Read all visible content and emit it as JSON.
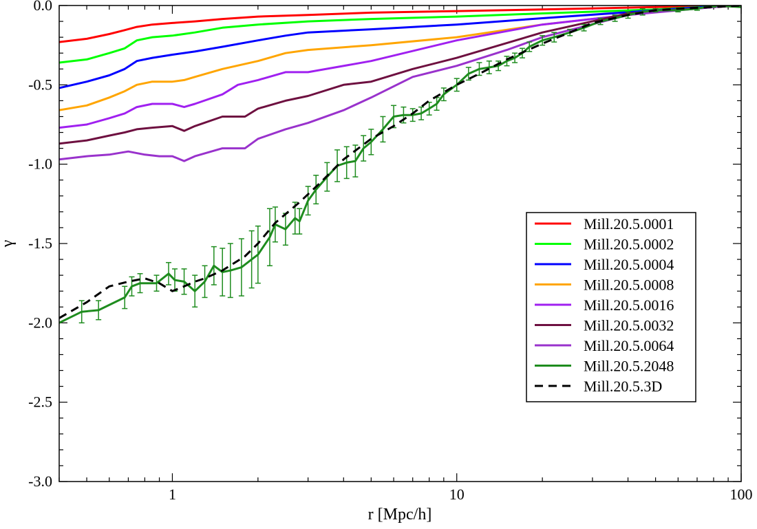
{
  "chart_data": {
    "type": "line",
    "title": "",
    "xlabel": "r [Mpc/h]",
    "ylabel": "γ",
    "xscale": "log",
    "xlim": [
      0.4,
      100
    ],
    "ylim": [
      -3.0,
      0.0
    ],
    "xticks": [
      {
        "value": 1,
        "label": "1"
      },
      {
        "value": 10,
        "label": "10"
      },
      {
        "value": 100,
        "label": "100"
      }
    ],
    "yticks": [
      {
        "value": 0.0,
        "label": "0.0"
      },
      {
        "value": -0.5,
        "label": "-0.5"
      },
      {
        "value": -1.0,
        "label": "-1.0"
      },
      {
        "value": -1.5,
        "label": "-1.5"
      },
      {
        "value": -2.0,
        "label": "-2.0"
      },
      {
        "value": -2.5,
        "label": "-2.5"
      },
      {
        "value": -3.0,
        "label": "-3.0"
      }
    ],
    "legend_position": "center-right",
    "series": [
      {
        "name": "Mill.20.5.0001",
        "color": "#ff0000",
        "style": "solid",
        "x": [
          0.4,
          0.5,
          0.6,
          0.68,
          0.75,
          0.85,
          1.0,
          1.2,
          1.5,
          2.0,
          3.0,
          5.0,
          10,
          20,
          50,
          80,
          100
        ],
        "y": [
          -0.23,
          -0.21,
          -0.18,
          -0.155,
          -0.135,
          -0.12,
          -0.11,
          -0.1,
          -0.085,
          -0.07,
          -0.06,
          -0.045,
          -0.035,
          -0.025,
          -0.01,
          -0.003,
          0.0
        ]
      },
      {
        "name": "Mill.20.5.0002",
        "color": "#00ff00",
        "style": "solid",
        "x": [
          0.4,
          0.5,
          0.6,
          0.68,
          0.75,
          0.85,
          1.0,
          1.2,
          1.5,
          2.0,
          3.0,
          5.0,
          10,
          20,
          50,
          80,
          100
        ],
        "y": [
          -0.36,
          -0.34,
          -0.3,
          -0.27,
          -0.22,
          -0.2,
          -0.19,
          -0.17,
          -0.14,
          -0.12,
          -0.1,
          -0.085,
          -0.07,
          -0.05,
          -0.025,
          -0.005,
          0.0
        ]
      },
      {
        "name": "Mill.20.5.0004",
        "color": "#0000ff",
        "style": "solid",
        "x": [
          0.4,
          0.5,
          0.6,
          0.68,
          0.75,
          0.85,
          1.0,
          1.2,
          1.5,
          2.0,
          2.5,
          3.0,
          5.0,
          10,
          20,
          50,
          80,
          100
        ],
        "y": [
          -0.52,
          -0.48,
          -0.44,
          -0.4,
          -0.35,
          -0.33,
          -0.31,
          -0.29,
          -0.26,
          -0.22,
          -0.19,
          -0.17,
          -0.15,
          -0.12,
          -0.08,
          -0.03,
          -0.005,
          0.0
        ]
      },
      {
        "name": "Mill.20.5.0008",
        "color": "#ffa500",
        "style": "solid",
        "x": [
          0.4,
          0.5,
          0.6,
          0.68,
          0.75,
          0.85,
          1.0,
          1.1,
          1.2,
          1.5,
          2.0,
          2.5,
          3.0,
          5.0,
          10,
          20,
          50,
          80,
          100
        ],
        "y": [
          -0.66,
          -0.63,
          -0.58,
          -0.54,
          -0.5,
          -0.48,
          -0.48,
          -0.47,
          -0.45,
          -0.4,
          -0.35,
          -0.3,
          -0.28,
          -0.25,
          -0.2,
          -0.12,
          -0.04,
          -0.01,
          0.0
        ]
      },
      {
        "name": "Mill.20.5.0016",
        "color": "#a020f0",
        "style": "solid",
        "x": [
          0.4,
          0.5,
          0.6,
          0.68,
          0.75,
          0.85,
          1.0,
          1.1,
          1.2,
          1.5,
          1.7,
          2.0,
          2.5,
          3.0,
          5.0,
          10,
          20,
          50,
          80,
          100
        ],
        "y": [
          -0.77,
          -0.75,
          -0.71,
          -0.68,
          -0.64,
          -0.62,
          -0.62,
          -0.64,
          -0.62,
          -0.56,
          -0.5,
          -0.47,
          -0.42,
          -0.42,
          -0.35,
          -0.22,
          -0.12,
          -0.04,
          -0.01,
          0.0
        ]
      },
      {
        "name": "Mill.20.5.0032",
        "color": "#6e1040",
        "style": "solid",
        "x": [
          0.4,
          0.5,
          0.6,
          0.68,
          0.75,
          0.85,
          1.0,
          1.1,
          1.2,
          1.5,
          1.8,
          2.0,
          2.5,
          3.0,
          4.0,
          5.0,
          7.0,
          10,
          20,
          40,
          80,
          100
        ],
        "y": [
          -0.87,
          -0.85,
          -0.82,
          -0.8,
          -0.78,
          -0.77,
          -0.76,
          -0.79,
          -0.76,
          -0.7,
          -0.7,
          -0.65,
          -0.6,
          -0.57,
          -0.5,
          -0.48,
          -0.4,
          -0.33,
          -0.17,
          -0.05,
          -0.01,
          0.0
        ]
      },
      {
        "name": "Mill.20.5.0064",
        "color": "#9932cc",
        "style": "solid",
        "x": [
          0.4,
          0.5,
          0.6,
          0.7,
          0.8,
          0.9,
          1.0,
          1.1,
          1.2,
          1.5,
          1.8,
          2.0,
          2.5,
          3.0,
          4.0,
          5.0,
          7.0,
          10,
          15,
          20,
          40,
          80,
          100
        ],
        "y": [
          -0.97,
          -0.95,
          -0.94,
          -0.92,
          -0.94,
          -0.95,
          -0.95,
          -0.98,
          -0.95,
          -0.9,
          -0.9,
          -0.84,
          -0.78,
          -0.74,
          -0.66,
          -0.58,
          -0.45,
          -0.38,
          -0.28,
          -0.2,
          -0.06,
          -0.01,
          0.0
        ]
      },
      {
        "name": "Mill.20.5.2048",
        "color": "#1e8c1e",
        "style": "solid",
        "errorbars": true,
        "x": [
          0.4,
          0.48,
          0.55,
          0.68,
          0.72,
          0.77,
          0.88,
          0.97,
          1.02,
          1.1,
          1.2,
          1.3,
          1.4,
          1.5,
          1.6,
          1.75,
          1.9,
          2.0,
          2.2,
          2.3,
          2.5,
          2.7,
          2.8,
          3.0,
          3.2,
          3.5,
          3.8,
          4.1,
          4.4,
          4.7,
          5.0,
          5.5,
          6.0,
          6.5,
          7.0,
          7.5,
          8.0,
          8.5,
          9.0,
          10,
          11,
          12,
          13,
          14,
          15,
          16,
          17,
          18,
          20,
          22,
          25,
          28,
          32,
          36,
          40,
          45,
          50,
          60,
          70,
          80,
          100
        ],
        "y": [
          -2.0,
          -1.93,
          -1.92,
          -1.84,
          -1.77,
          -1.75,
          -1.75,
          -1.69,
          -1.73,
          -1.74,
          -1.8,
          -1.74,
          -1.64,
          -1.68,
          -1.67,
          -1.65,
          -1.6,
          -1.57,
          -1.46,
          -1.38,
          -1.41,
          -1.34,
          -1.36,
          -1.23,
          -1.16,
          -1.08,
          -1.01,
          -0.99,
          -0.98,
          -0.9,
          -0.86,
          -0.78,
          -0.7,
          -0.69,
          -0.69,
          -0.68,
          -0.65,
          -0.62,
          -0.56,
          -0.5,
          -0.43,
          -0.4,
          -0.39,
          -0.38,
          -0.35,
          -0.33,
          -0.3,
          -0.26,
          -0.22,
          -0.2,
          -0.17,
          -0.14,
          -0.1,
          -0.08,
          -0.06,
          -0.04,
          -0.03,
          -0.03,
          -0.02,
          0.0,
          -0.01
        ],
        "err": [
          0.0,
          0.07,
          0.06,
          0.07,
          0.06,
          0.06,
          0.05,
          0.07,
          0.07,
          0.08,
          0.1,
          0.1,
          0.12,
          0.15,
          0.17,
          0.18,
          0.18,
          0.18,
          0.18,
          0.11,
          0.1,
          0.1,
          0.08,
          0.09,
          0.09,
          0.09,
          0.1,
          0.1,
          0.1,
          0.08,
          0.08,
          0.08,
          0.07,
          0.05,
          0.04,
          0.04,
          0.04,
          0.04,
          0.04,
          0.04,
          0.04,
          0.04,
          0.04,
          0.03,
          0.03,
          0.03,
          0.03,
          0.03,
          0.03,
          0.03,
          0.02,
          0.02,
          0.02,
          0.02,
          0.02,
          0.02,
          0.01,
          0.01,
          0.01,
          0.01,
          0.0
        ]
      },
      {
        "name": "Mill.20.5.3D",
        "color": "#000000",
        "style": "dashed",
        "x": [
          0.4,
          0.5,
          0.6,
          0.7,
          0.8,
          0.9,
          1.0,
          1.1,
          1.2,
          1.3,
          1.5,
          1.8,
          2.0,
          2.3,
          2.8,
          3.3,
          4.0,
          5.0,
          6.0,
          7.0,
          8.0,
          10,
          12,
          15,
          20,
          25,
          30,
          40,
          50,
          60,
          80,
          100
        ],
        "y": [
          -1.97,
          -1.87,
          -1.77,
          -1.74,
          -1.72,
          -1.75,
          -1.8,
          -1.77,
          -1.74,
          -1.72,
          -1.67,
          -1.58,
          -1.5,
          -1.37,
          -1.24,
          -1.12,
          -0.97,
          -0.84,
          -0.76,
          -0.68,
          -0.6,
          -0.5,
          -0.43,
          -0.34,
          -0.24,
          -0.17,
          -0.11,
          -0.06,
          -0.03,
          -0.02,
          -0.01,
          0.0
        ]
      }
    ]
  }
}
